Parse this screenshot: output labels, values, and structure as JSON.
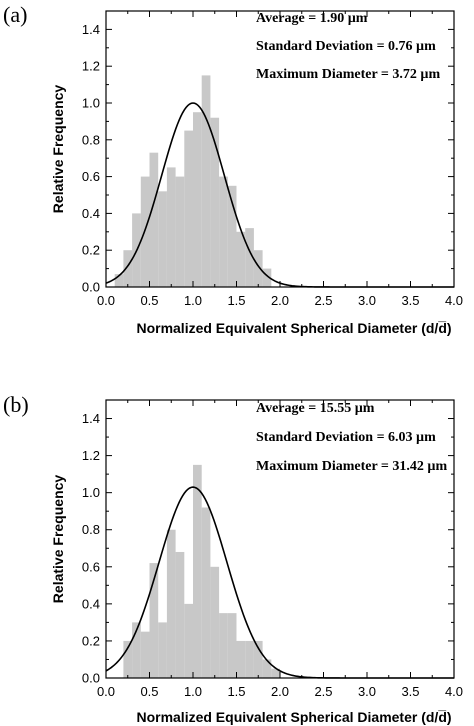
{
  "chart_data": [
    {
      "type": "bar",
      "panel_label": "(a)",
      "stats": [
        "Average = 1.90 µm",
        "Standard Deviation = 0.76 µm",
        "Maximum Diameter = 3.72 µm"
      ],
      "xlabel": "Normalized Equivalent Spherical Diameter (d/d̅)",
      "ylabel": "Relative Frequency",
      "xlim": [
        0,
        4
      ],
      "ylim": [
        0,
        1.5
      ],
      "xticks": [
        "0.0",
        "0.5",
        "1.0",
        "1.5",
        "2.0",
        "2.5",
        "3.0",
        "3.5",
        "4.0"
      ],
      "yticks": [
        "0.0",
        "0.2",
        "0.4",
        "0.6",
        "0.8",
        "1.0",
        "1.2",
        "1.4"
      ],
      "bin_width": 0.1,
      "bins": [
        {
          "x": 0.1,
          "y": 0.07
        },
        {
          "x": 0.2,
          "y": 0.2
        },
        {
          "x": 0.3,
          "y": 0.4
        },
        {
          "x": 0.4,
          "y": 0.6
        },
        {
          "x": 0.5,
          "y": 0.73
        },
        {
          "x": 0.6,
          "y": 0.52
        },
        {
          "x": 0.7,
          "y": 0.65
        },
        {
          "x": 0.8,
          "y": 0.6
        },
        {
          "x": 0.9,
          "y": 0.85
        },
        {
          "x": 1.0,
          "y": 0.95
        },
        {
          "x": 1.1,
          "y": 1.15
        },
        {
          "x": 1.2,
          "y": 0.92
        },
        {
          "x": 1.3,
          "y": 0.6
        },
        {
          "x": 1.4,
          "y": 0.55
        },
        {
          "x": 1.5,
          "y": 0.3
        },
        {
          "x": 1.6,
          "y": 0.32
        },
        {
          "x": 1.7,
          "y": 0.2
        },
        {
          "x": 1.8,
          "y": 0.1
        }
      ],
      "fit": {
        "type": "gaussian",
        "amplitude": 1.0,
        "mean": 1.0,
        "sd": 0.36
      }
    },
    {
      "type": "bar",
      "panel_label": "(b)",
      "stats": [
        "Average = 15.55 µm",
        "Standard Deviation = 6.03 µm",
        "Maximum Diameter = 31.42 µm"
      ],
      "xlabel": "Normalized Equivalent Spherical Diameter (d/d̅)",
      "ylabel": "Relative Frequency",
      "xlim": [
        0,
        4
      ],
      "ylim": [
        0,
        1.5
      ],
      "xticks": [
        "0.0",
        "0.5",
        "1.0",
        "1.5",
        "2.0",
        "2.5",
        "3.0",
        "3.5",
        "4.0"
      ],
      "yticks": [
        "0.0",
        "0.2",
        "0.4",
        "0.6",
        "0.8",
        "1.0",
        "1.2",
        "1.4"
      ],
      "bin_width": 0.1,
      "bins": [
        {
          "x": 0.2,
          "y": 0.2
        },
        {
          "x": 0.3,
          "y": 0.3
        },
        {
          "x": 0.4,
          "y": 0.25
        },
        {
          "x": 0.5,
          "y": 0.62
        },
        {
          "x": 0.6,
          "y": 0.3
        },
        {
          "x": 0.7,
          "y": 0.8
        },
        {
          "x": 0.8,
          "y": 0.68
        },
        {
          "x": 0.9,
          "y": 0.4
        },
        {
          "x": 1.0,
          "y": 1.15
        },
        {
          "x": 1.1,
          "y": 0.92
        },
        {
          "x": 1.2,
          "y": 0.6
        },
        {
          "x": 1.3,
          "y": 0.35
        },
        {
          "x": 1.4,
          "y": 0.35
        },
        {
          "x": 1.5,
          "y": 0.2
        },
        {
          "x": 1.6,
          "y": 0.2
        },
        {
          "x": 1.7,
          "y": 0.2
        },
        {
          "x": 1.8,
          "y": 0.1
        },
        {
          "x": 1.9,
          "y": 0.05
        }
      ],
      "fit": {
        "type": "gaussian",
        "amplitude": 1.03,
        "mean": 1.0,
        "sd": 0.39
      }
    }
  ]
}
